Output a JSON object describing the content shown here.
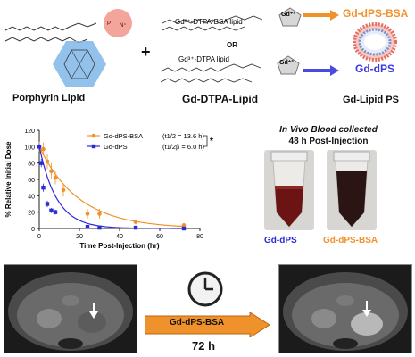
{
  "top": {
    "porphyrin_label": "Porphyrin Lipid",
    "plus": "+",
    "dtpa_bsa_lipid": "Gd³⁺-DTPA-BSA lipid",
    "or": "OR",
    "dtpa_lipid": "Gd³⁺-DTPA lipid",
    "gd_label": "Gd⁺³",
    "gd_dtpa_lipid_label": "Gd-DTPA-Lipid",
    "product_bsa": "Gd-dPS-BSA",
    "product_dps": "Gd-dPS",
    "gd_lipid_ps_label": "Gd-Lipid PS"
  },
  "chart_data": {
    "type": "line",
    "xlabel": "Time Post-Injection (hr)",
    "ylabel": "% Relative Initial Dose",
    "xlim": [
      0,
      80
    ],
    "ylim": [
      0,
      120
    ],
    "xticks": [
      "0",
      "20",
      "40",
      "60",
      "80"
    ],
    "yticks": [
      "0",
      "20",
      "40",
      "60",
      "80",
      "100",
      "120"
    ],
    "legend_position": "top-right",
    "significance": "*",
    "series": [
      {
        "name": "Gd-dPS-BSA",
        "halflife": "(t1/2 = 13.6 h)",
        "color": "#f0922b",
        "x": [
          0,
          2,
          4,
          6,
          8,
          12,
          24,
          30,
          48,
          72
        ],
        "y": [
          100,
          97,
          82,
          70,
          62,
          47,
          18,
          18,
          8,
          4
        ],
        "err": [
          6,
          8,
          9,
          10,
          8,
          8,
          6,
          6,
          3,
          2
        ]
      },
      {
        "name": "Gd-dPS",
        "halflife": "(t1/2β = 6.0 h)",
        "color": "#2a2ad8",
        "x": [
          0,
          1,
          2,
          4,
          6,
          8,
          24,
          30,
          48,
          72
        ],
        "y": [
          100,
          80,
          50,
          30,
          22,
          20,
          2,
          1,
          1,
          0
        ],
        "err": [
          4,
          5,
          5,
          4,
          3,
          3,
          1,
          1,
          1,
          0
        ]
      }
    ]
  },
  "blood": {
    "title": "In Vivo Blood collected",
    "subtitle": "48 h Post-Injection",
    "tube1_label": "Gd-dPS",
    "tube2_label": "Gd-dPS-BSA"
  },
  "bottom": {
    "arrow_label": "Gd-dPS-BSA",
    "time_label": "72 h"
  }
}
